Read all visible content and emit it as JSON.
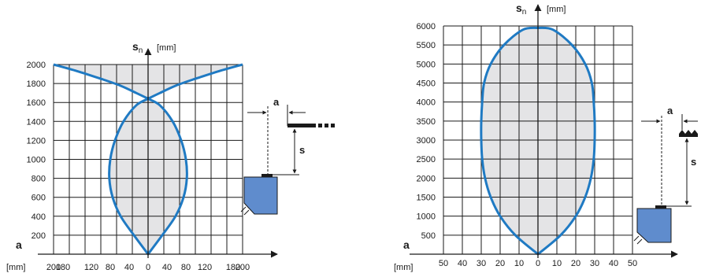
{
  "chart_data": [
    {
      "type": "area",
      "name": "left-chart",
      "ylabel": "s",
      "ylabel_sub": "n",
      "yunit": "[mm]",
      "xlabel": "a",
      "xunit": "[mm]",
      "ylim": [
        0,
        2000
      ],
      "xlim": [
        -200,
        200
      ],
      "yticks": [
        200,
        400,
        600,
        800,
        1000,
        1200,
        1400,
        1600,
        1800,
        2000
      ],
      "xticks": [
        -200,
        -180,
        -120,
        -80,
        -40,
        0,
        40,
        80,
        120,
        180,
        200
      ],
      "xtick_labels": [
        "200",
        "180",
        "120",
        "80",
        "40",
        "0",
        "40",
        "80",
        "120",
        "180",
        "200"
      ],
      "grid": true,
      "series": [
        {
          "outline": [
            [
              0,
              0
            ],
            [
              30,
              200
            ],
            [
              58,
              400
            ],
            [
              75,
              600
            ],
            [
              82,
              800
            ],
            [
              80,
              1000
            ],
            [
              70,
              1200
            ],
            [
              52,
              1400
            ],
            [
              25,
              1570
            ],
            [
              0,
              1640
            ]
          ],
          "upper_branch": [
            [
              0,
              1640
            ],
            [
              25,
              1700
            ],
            [
              60,
              1780
            ],
            [
              100,
              1850
            ],
            [
              150,
              1930
            ],
            [
              200,
              2000
            ]
          ]
        }
      ],
      "diagram_labels": {
        "a": "a",
        "s": "s"
      }
    },
    {
      "type": "area",
      "name": "right-chart",
      "ylabel": "s",
      "ylabel_sub": "n",
      "yunit": "[mm]",
      "xlabel": "a",
      "xunit": "[mm]",
      "ylim": [
        0,
        6000
      ],
      "xlim": [
        -50,
        50
      ],
      "yticks": [
        500,
        1000,
        1500,
        2000,
        2500,
        3000,
        3500,
        4000,
        4500,
        5000,
        5500,
        6000
      ],
      "xticks": [
        -50,
        -40,
        -30,
        -20,
        -10,
        0,
        10,
        20,
        30,
        40,
        50
      ],
      "xtick_labels": [
        "50",
        "40",
        "30",
        "20",
        "10",
        "0",
        "10",
        "20",
        "30",
        "40",
        "50"
      ],
      "grid": true,
      "series": [
        {
          "outline": [
            [
              0,
              0
            ],
            [
              12,
              500
            ],
            [
              20,
              1000
            ],
            [
              25,
              1500
            ],
            [
              28,
              2000
            ],
            [
              29.5,
              2500
            ],
            [
              30,
              3000
            ],
            [
              30,
              3500
            ],
            [
              29.5,
              4000
            ],
            [
              28.5,
              4500
            ],
            [
              25,
              5000
            ],
            [
              18,
              5500
            ],
            [
              8,
              5900
            ],
            [
              0,
              5950
            ]
          ]
        }
      ],
      "diagram_labels": {
        "a": "a",
        "s": "s"
      }
    }
  ]
}
